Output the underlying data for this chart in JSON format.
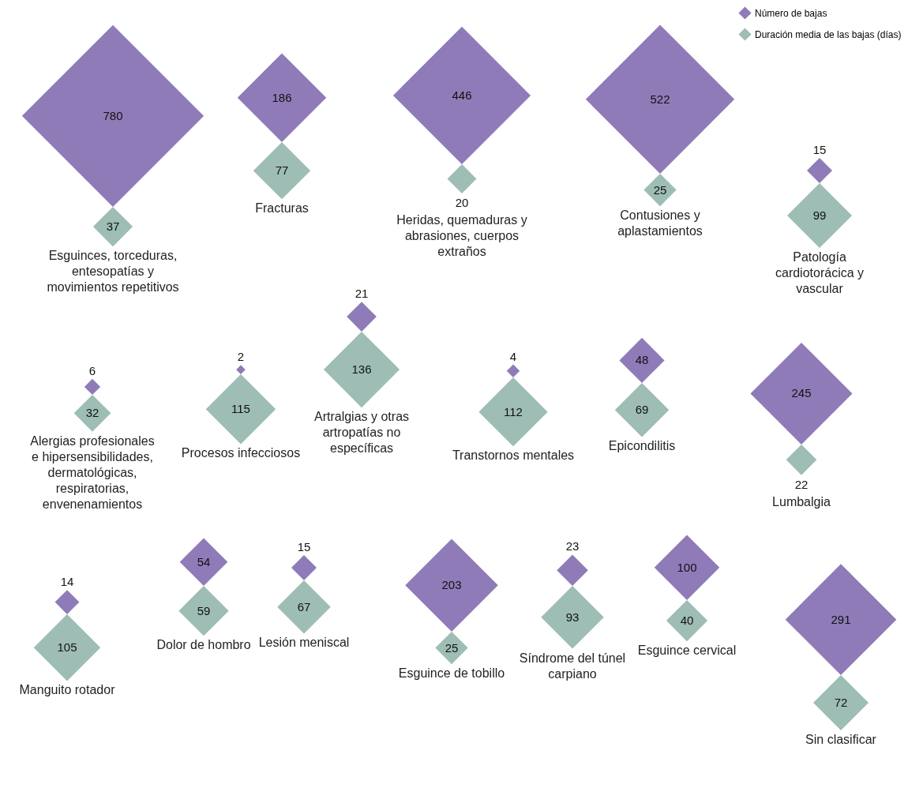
{
  "chart_data": {
    "type": "other",
    "categories": [
      "Esguinces, torceduras, entesopatías y movimientos repetitivos",
      "Fracturas",
      "Heridas, quemaduras y abrasiones, cuerpos extraños",
      "Contusiones y aplastamientos",
      "Patología cardiotorácica y vascular",
      "Alergias profesionales e hipersensibilidades, dermatológicas, respiratorias, envenenamientos",
      "Procesos infecciosos",
      "Artralgias y otras artropatías no específicas",
      "Transtornos mentales",
      "Epicondilitis",
      "Lumbalgia",
      "Manguito rotador",
      "Dolor de hombro",
      "Lesión meniscal",
      "Esguince de tobillo",
      "Síndrome del túnel carpiano",
      "Esguince cervical",
      "Sin clasificar"
    ],
    "series": [
      {
        "name": "Número de bajas",
        "color": "#8f7bb8",
        "values": [
          780,
          186,
          446,
          522,
          15,
          6,
          2,
          21,
          4,
          48,
          245,
          14,
          54,
          15,
          203,
          23,
          100,
          291
        ]
      },
      {
        "name": "Duración media de las bajas (días)",
        "color": "#9dbdb5",
        "values": [
          37,
          77,
          20,
          25,
          99,
          32,
          115,
          136,
          112,
          69,
          22,
          105,
          59,
          67,
          25,
          93,
          40,
          72
        ]
      }
    ],
    "data_labels": true,
    "legend": "top right"
  }
}
